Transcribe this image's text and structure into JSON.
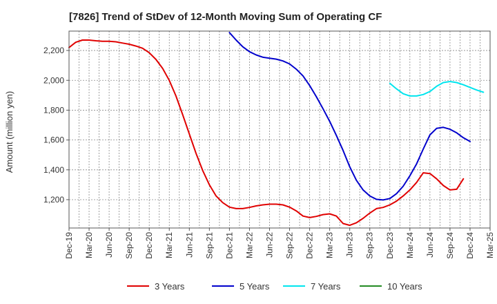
{
  "chart_data": {
    "type": "line",
    "title": "[7826]  Trend of StDev of 12-Month Moving Sum of Operating CF",
    "ylabel": "Amount (million yen)",
    "xlabel": "",
    "ylim": [
      1010,
      2330
    ],
    "yticks": [
      1200,
      1400,
      1600,
      1800,
      2000,
      2200
    ],
    "ytick_labels": [
      "1,200",
      "1,400",
      "1,600",
      "1,800",
      "2,000",
      "2,200"
    ],
    "x_categories": [
      "Dec-19",
      "Mar-20",
      "Jun-20",
      "Sep-20",
      "Dec-20",
      "Mar-21",
      "Jun-21",
      "Sep-21",
      "Dec-21",
      "Mar-22",
      "Jun-22",
      "Sep-22",
      "Dec-22",
      "Mar-23",
      "Jun-23",
      "Sep-23",
      "Dec-23",
      "Mar-24",
      "Jun-24",
      "Sep-24",
      "Dec-24",
      "Mar-25"
    ],
    "grid": true,
    "legend_position": "bottom",
    "series": [
      {
        "name": "3 Years",
        "color": "#e00000",
        "start_index": 0,
        "values": [
          2220,
          2255,
          2270,
          2270,
          2265,
          2262,
          2262,
          2258,
          2250,
          2242,
          2230,
          2215,
          2185,
          2140,
          2080,
          2000,
          1895,
          1770,
          1640,
          1510,
          1395,
          1300,
          1225,
          1180,
          1150,
          1140,
          1140,
          1148,
          1158,
          1165,
          1170,
          1170,
          1165,
          1150,
          1125,
          1090,
          1080,
          1088,
          1100,
          1105,
          1090,
          1040,
          1028,
          1045,
          1075,
          1110,
          1140,
          1148,
          1165,
          1190,
          1225,
          1265,
          1315,
          1380,
          1375,
          1340,
          1295,
          1265,
          1270,
          1340
        ]
      },
      {
        "name": "5 Years",
        "color": "#0000cc",
        "start_index": 24,
        "values": [
          2320,
          2270,
          2225,
          2192,
          2170,
          2155,
          2148,
          2142,
          2130,
          2110,
          2075,
          2030,
          1965,
          1890,
          1810,
          1725,
          1630,
          1530,
          1420,
          1330,
          1265,
          1225,
          1202,
          1198,
          1208,
          1240,
          1290,
          1360,
          1440,
          1540,
          1635,
          1678,
          1685,
          1672,
          1648,
          1615,
          1590
        ]
      },
      {
        "name": "7 Years",
        "color": "#00e5ee",
        "start_index": 48,
        "values": [
          1980,
          1943,
          1910,
          1895,
          1895,
          1905,
          1925,
          1960,
          1985,
          1992,
          1985,
          1970,
          1952,
          1935,
          1920
        ]
      },
      {
        "name": "10 Years",
        "color": "#228b22",
        "start_index": 0,
        "values": []
      }
    ]
  }
}
